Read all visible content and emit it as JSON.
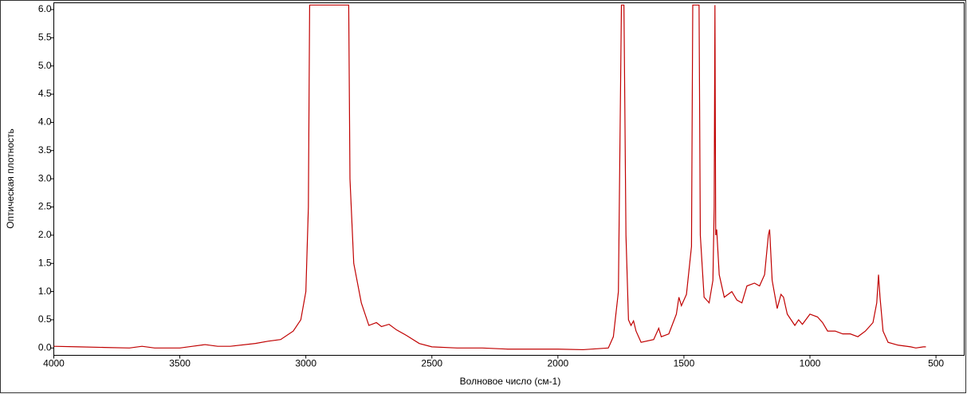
{
  "chart_data": {
    "type": "line",
    "y_label": "Оптическая плотность",
    "x_label": "Волновое число (см-1)",
    "color": "#c00000",
    "grid": false,
    "xlim": [
      4000,
      388
    ],
    "ylim": [
      -0.13,
      6.12
    ],
    "xticks": [
      4000,
      3500,
      3000,
      2500,
      2000,
      1500,
      1000,
      500
    ],
    "yticks": [
      {
        "value": 0,
        "label": "0.0"
      },
      0.5,
      {
        "value": 1,
        "label": "1.0"
      },
      1.5,
      {
        "value": 2,
        "label": "2.0"
      },
      2.5,
      {
        "value": 3,
        "label": "3.0"
      },
      3.5,
      {
        "value": 4,
        "label": "4.0"
      },
      4.5,
      {
        "value": 5,
        "label": "5.0"
      },
      5.5,
      {
        "value": 6,
        "label": "6.0"
      }
    ],
    "x": [
      4000,
      3900,
      3800,
      3700,
      3650,
      3600,
      3500,
      3450,
      3400,
      3350,
      3300,
      3200,
      3150,
      3100,
      3050,
      3020,
      3000,
      2990,
      2985,
      2830,
      2825,
      2810,
      2780,
      2750,
      2720,
      2700,
      2670,
      2640,
      2600,
      2550,
      2500,
      2400,
      2300,
      2200,
      2100,
      2000,
      1900,
      1800,
      1780,
      1760,
      1748,
      1738,
      1730,
      1720,
      1710,
      1700,
      1690,
      1670,
      1620,
      1600,
      1590,
      1560,
      1530,
      1520,
      1510,
      1490,
      1470,
      1465,
      1440,
      1435,
      1420,
      1400,
      1385,
      1380,
      1377,
      1374,
      1370,
      1360,
      1340,
      1310,
      1290,
      1270,
      1250,
      1220,
      1200,
      1180,
      1165,
      1160,
      1150,
      1130,
      1115,
      1105,
      1090,
      1060,
      1045,
      1030,
      1000,
      970,
      950,
      930,
      900,
      870,
      840,
      810,
      780,
      750,
      735,
      728,
      722,
      710,
      690,
      650,
      600,
      580,
      550,
      540
    ],
    "values": [
      0.03,
      0.02,
      0.01,
      0.0,
      0.03,
      0.0,
      0.0,
      0.03,
      0.06,
      0.03,
      0.03,
      0.08,
      0.12,
      0.15,
      0.3,
      0.5,
      1.0,
      2.5,
      6.08,
      6.08,
      3.0,
      1.5,
      0.8,
      0.4,
      0.45,
      0.38,
      0.42,
      0.32,
      0.22,
      0.08,
      0.02,
      0.0,
      0.0,
      -0.02,
      -0.02,
      -0.02,
      -0.03,
      0.0,
      0.2,
      1.0,
      6.08,
      6.08,
      2.0,
      0.5,
      0.4,
      0.48,
      0.3,
      0.1,
      0.15,
      0.35,
      0.2,
      0.25,
      0.6,
      0.9,
      0.75,
      0.95,
      1.8,
      6.08,
      6.08,
      2.0,
      0.9,
      0.8,
      1.2,
      2.5,
      6.08,
      2.0,
      2.1,
      1.3,
      0.9,
      1.0,
      0.85,
      0.8,
      1.1,
      1.15,
      1.1,
      1.3,
      2.0,
      2.1,
      1.2,
      0.7,
      0.95,
      0.9,
      0.6,
      0.4,
      0.5,
      0.42,
      0.6,
      0.55,
      0.45,
      0.3,
      0.3,
      0.25,
      0.25,
      0.2,
      0.3,
      0.45,
      0.8,
      1.3,
      0.9,
      0.3,
      0.1,
      0.05,
      0.02,
      0.0,
      0.02,
      0.02
    ]
  }
}
